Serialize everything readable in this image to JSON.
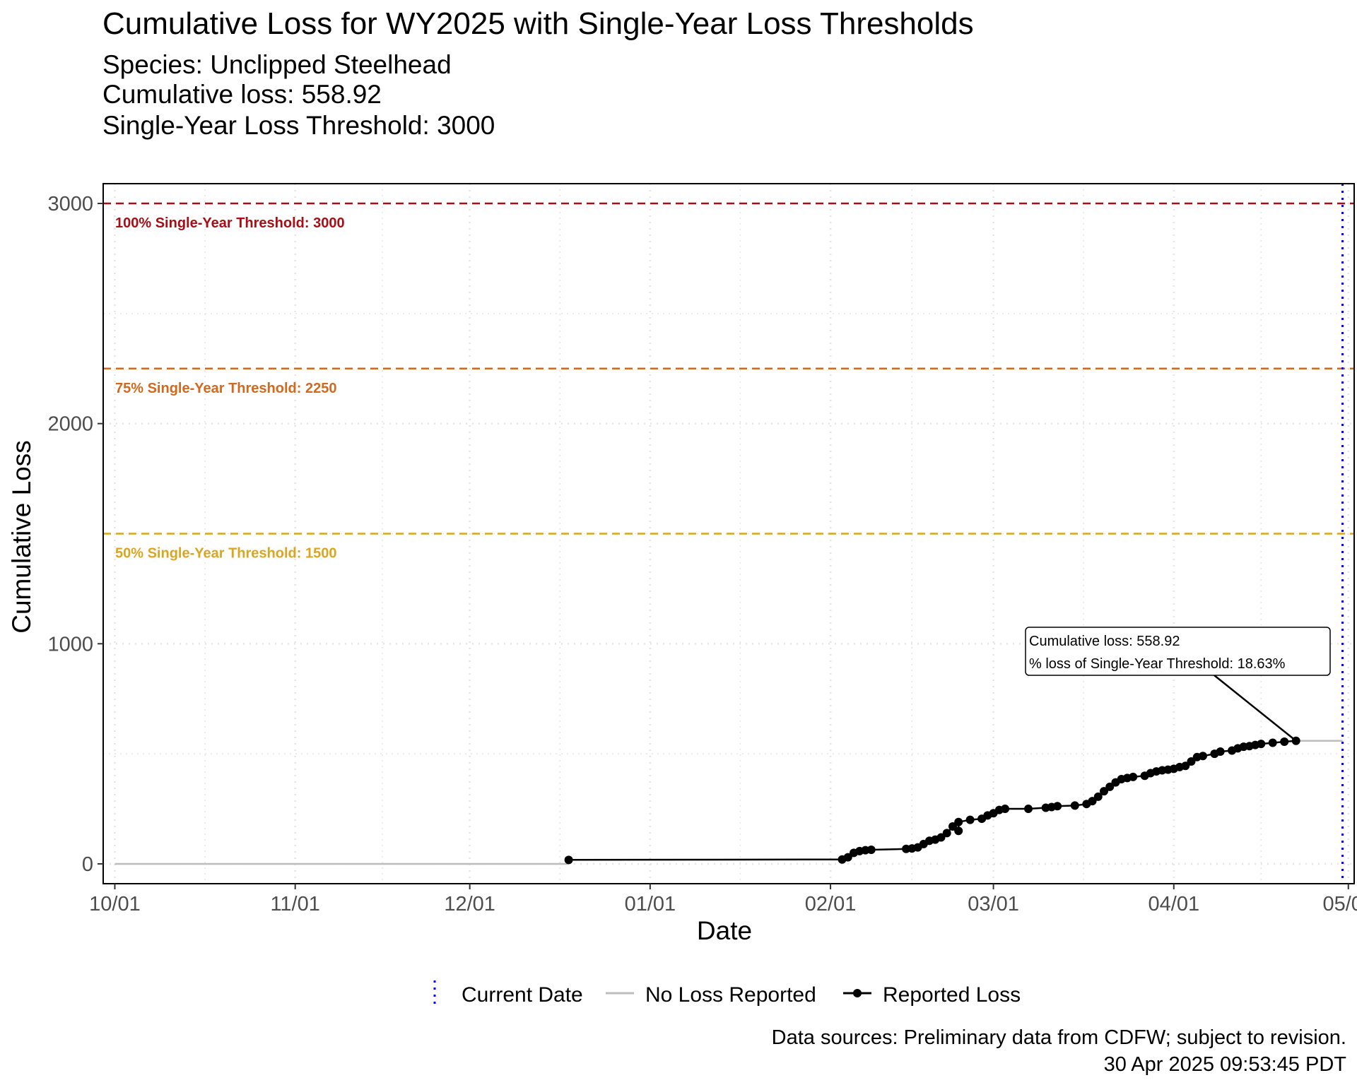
{
  "title": "Cumulative Loss for WY2025 with Single-Year Loss Thresholds",
  "subtitle_lines": [
    "Species: Unclipped Steelhead",
    "Cumulative loss: 558.92",
    "Single-Year Loss Threshold: 3000"
  ],
  "caption_lines": [
    "Data sources: Preliminary data from CDFW; subject to revision.",
    "30 Apr 2025 09:53:45 PDT"
  ],
  "annotation_lines": [
    "Cumulative loss: 558.92",
    "% loss of Single-Year Threshold: 18.63%"
  ],
  "colors": {
    "threshold_100": "#a50f15",
    "threshold_75": "#d2691e",
    "threshold_50": "#daa520",
    "current_date": "#0000ff",
    "no_loss": "#bdbdbd",
    "reported": "#000000",
    "grid": "#e5e5e5"
  },
  "chart_data": {
    "type": "line",
    "title": "Cumulative Loss for WY2025 with Single-Year Loss Thresholds",
    "xlabel": "Date",
    "ylabel": "Cumulative Loss",
    "x_is_date": true,
    "xlim": [
      "2024-09-29",
      "2025-05-02"
    ],
    "ylim": [
      -90,
      3090
    ],
    "x_ticks": [
      {
        "date": "2024-10-01",
        "label": "10/01"
      },
      {
        "date": "2024-11-01",
        "label": "11/01"
      },
      {
        "date": "2024-12-01",
        "label": "12/01"
      },
      {
        "date": "2025-01-01",
        "label": "01/01"
      },
      {
        "date": "2025-02-01",
        "label": "02/01"
      },
      {
        "date": "2025-03-01",
        "label": "03/01"
      },
      {
        "date": "2025-04-01",
        "label": "04/01"
      },
      {
        "date": "2025-05-01",
        "label": "05/01"
      }
    ],
    "y_ticks": [
      0,
      1000,
      2000,
      3000
    ],
    "grid": true,
    "legend_position": "bottom",
    "legend": [
      "Current Date",
      "No Loss Reported",
      "Reported Loss"
    ],
    "thresholds": [
      {
        "value": 3000,
        "label": "100% Single-Year Threshold: 3000",
        "color": "#a50f15"
      },
      {
        "value": 2250,
        "label": "75% Single-Year Threshold: 2250",
        "color": "#d2691e"
      },
      {
        "value": 1500,
        "label": "50% Single-Year Threshold: 1500",
        "color": "#daa520"
      }
    ],
    "current_date": "2025-04-30",
    "series": [
      {
        "name": "No Loss Reported",
        "color": "#bdbdbd",
        "x": [
          "2024-10-01",
          "2024-12-18",
          "2025-04-22",
          "2025-04-30"
        ],
        "y": [
          0,
          0,
          558.92,
          558.92
        ]
      },
      {
        "name": "Reported Loss",
        "color": "#000000",
        "x": [
          "2024-12-18",
          "2025-02-03",
          "2025-02-04",
          "2025-02-05",
          "2025-02-06",
          "2025-02-07",
          "2025-02-08",
          "2025-02-14",
          "2025-02-15",
          "2025-02-16",
          "2025-02-17",
          "2025-02-18",
          "2025-02-19",
          "2025-02-20",
          "2025-02-21",
          "2025-02-22",
          "2025-02-23",
          "2025-02-23",
          "2025-02-25",
          "2025-02-27",
          "2025-02-28",
          "2025-03-01",
          "2025-03-02",
          "2025-03-03",
          "2025-03-07",
          "2025-03-10",
          "2025-03-11",
          "2025-03-12",
          "2025-03-15",
          "2025-03-17",
          "2025-03-18",
          "2025-03-19",
          "2025-03-20",
          "2025-03-21",
          "2025-03-22",
          "2025-03-23",
          "2025-03-24",
          "2025-03-25",
          "2025-03-27",
          "2025-03-28",
          "2025-03-29",
          "2025-03-30",
          "2025-03-31",
          "2025-04-01",
          "2025-04-02",
          "2025-04-03",
          "2025-04-04",
          "2025-04-05",
          "2025-04-06",
          "2025-04-08",
          "2025-04-09",
          "2025-04-11",
          "2025-04-12",
          "2025-04-13",
          "2025-04-14",
          "2025-04-15",
          "2025-04-16",
          "2025-04-18",
          "2025-04-20",
          "2025-04-22"
        ],
        "y": [
          18,
          20,
          30,
          50,
          58,
          62,
          64,
          68,
          70,
          75,
          90,
          105,
          110,
          120,
          140,
          170,
          150,
          190,
          200,
          205,
          220,
          230,
          245,
          250,
          250,
          255,
          258,
          262,
          265,
          272,
          285,
          305,
          330,
          350,
          370,
          385,
          390,
          395,
          400,
          412,
          420,
          425,
          428,
          432,
          440,
          445,
          465,
          485,
          490,
          500,
          510,
          515,
          525,
          532,
          535,
          540,
          545,
          550,
          555,
          558.92
        ]
      }
    ]
  }
}
